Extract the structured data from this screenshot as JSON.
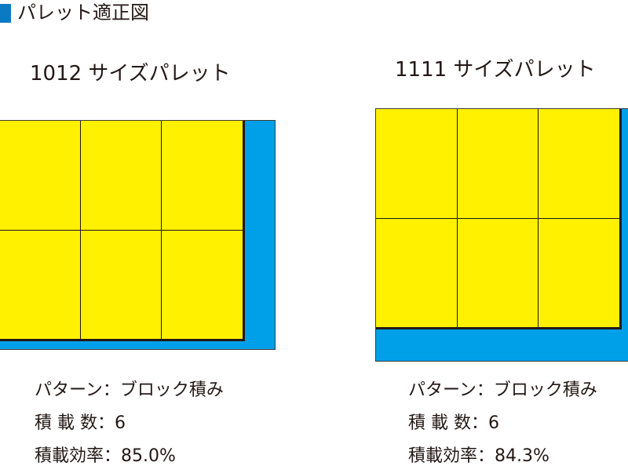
{
  "title": "パレット適正図",
  "colors": {
    "pallet": "#00a0e9",
    "load": "#fff100",
    "title_mark": "#0b7ac5"
  },
  "pallets": [
    {
      "label": "1012 サイズパレット",
      "rows": 2,
      "cols": 3,
      "info": [
        "パターン：ブロック積み",
        "積 載 数：6",
        "積載効率：85.0%"
      ]
    },
    {
      "label": "1111 サイズパレット",
      "rows": 2,
      "cols": 3,
      "info": [
        "パターン：ブロック積み",
        "積 載 数：6",
        "積載効率：84.3%"
      ]
    }
  ]
}
